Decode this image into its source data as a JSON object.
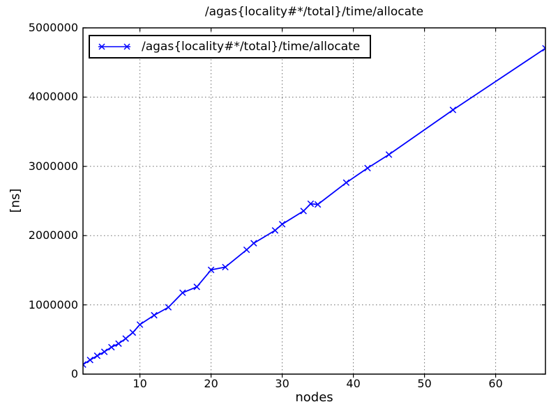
{
  "figure": {
    "background": "#ffffff"
  },
  "colors": {
    "series": "#0000ff",
    "grid": "#6b6b6b",
    "axis": "#000000",
    "text": "#000000",
    "legend_background": "#ffffff"
  },
  "chart_data": {
    "type": "line",
    "title": "/agas{locality#*/total}/time/allocate",
    "xlabel": "nodes",
    "ylabel": "[ns]",
    "xlim": [
      2,
      67
    ],
    "ylim": [
      0,
      5000000
    ],
    "xticks": [
      10,
      20,
      30,
      40,
      50,
      60
    ],
    "yticks": [
      0,
      1000000,
      2000000,
      3000000,
      4000000,
      5000000
    ],
    "grid": "dotted",
    "legend": {
      "position": "upper-left",
      "entries": [
        {
          "label": "/agas{locality#*/total}/time/allocate",
          "color": "#0000ff",
          "marker": "x"
        }
      ]
    },
    "series": [
      {
        "name": "/agas{locality#*/total}/time/allocate",
        "color": "#0000ff",
        "marker": "x",
        "x": [
          2,
          3,
          4,
          5,
          6,
          7,
          8,
          9,
          10,
          12,
          14,
          16,
          18,
          20,
          22,
          25,
          26,
          29,
          30,
          33,
          34,
          35,
          39,
          42,
          45,
          54,
          67
        ],
        "y": [
          138000,
          204000,
          265000,
          322000,
          389000,
          440000,
          513000,
          600000,
          715000,
          850000,
          965000,
          1175000,
          1260000,
          1505000,
          1545000,
          1795000,
          1890000,
          2075000,
          2165000,
          2355000,
          2460000,
          2450000,
          2765000,
          2975000,
          3170000,
          3815000,
          4705000
        ]
      }
    ]
  }
}
